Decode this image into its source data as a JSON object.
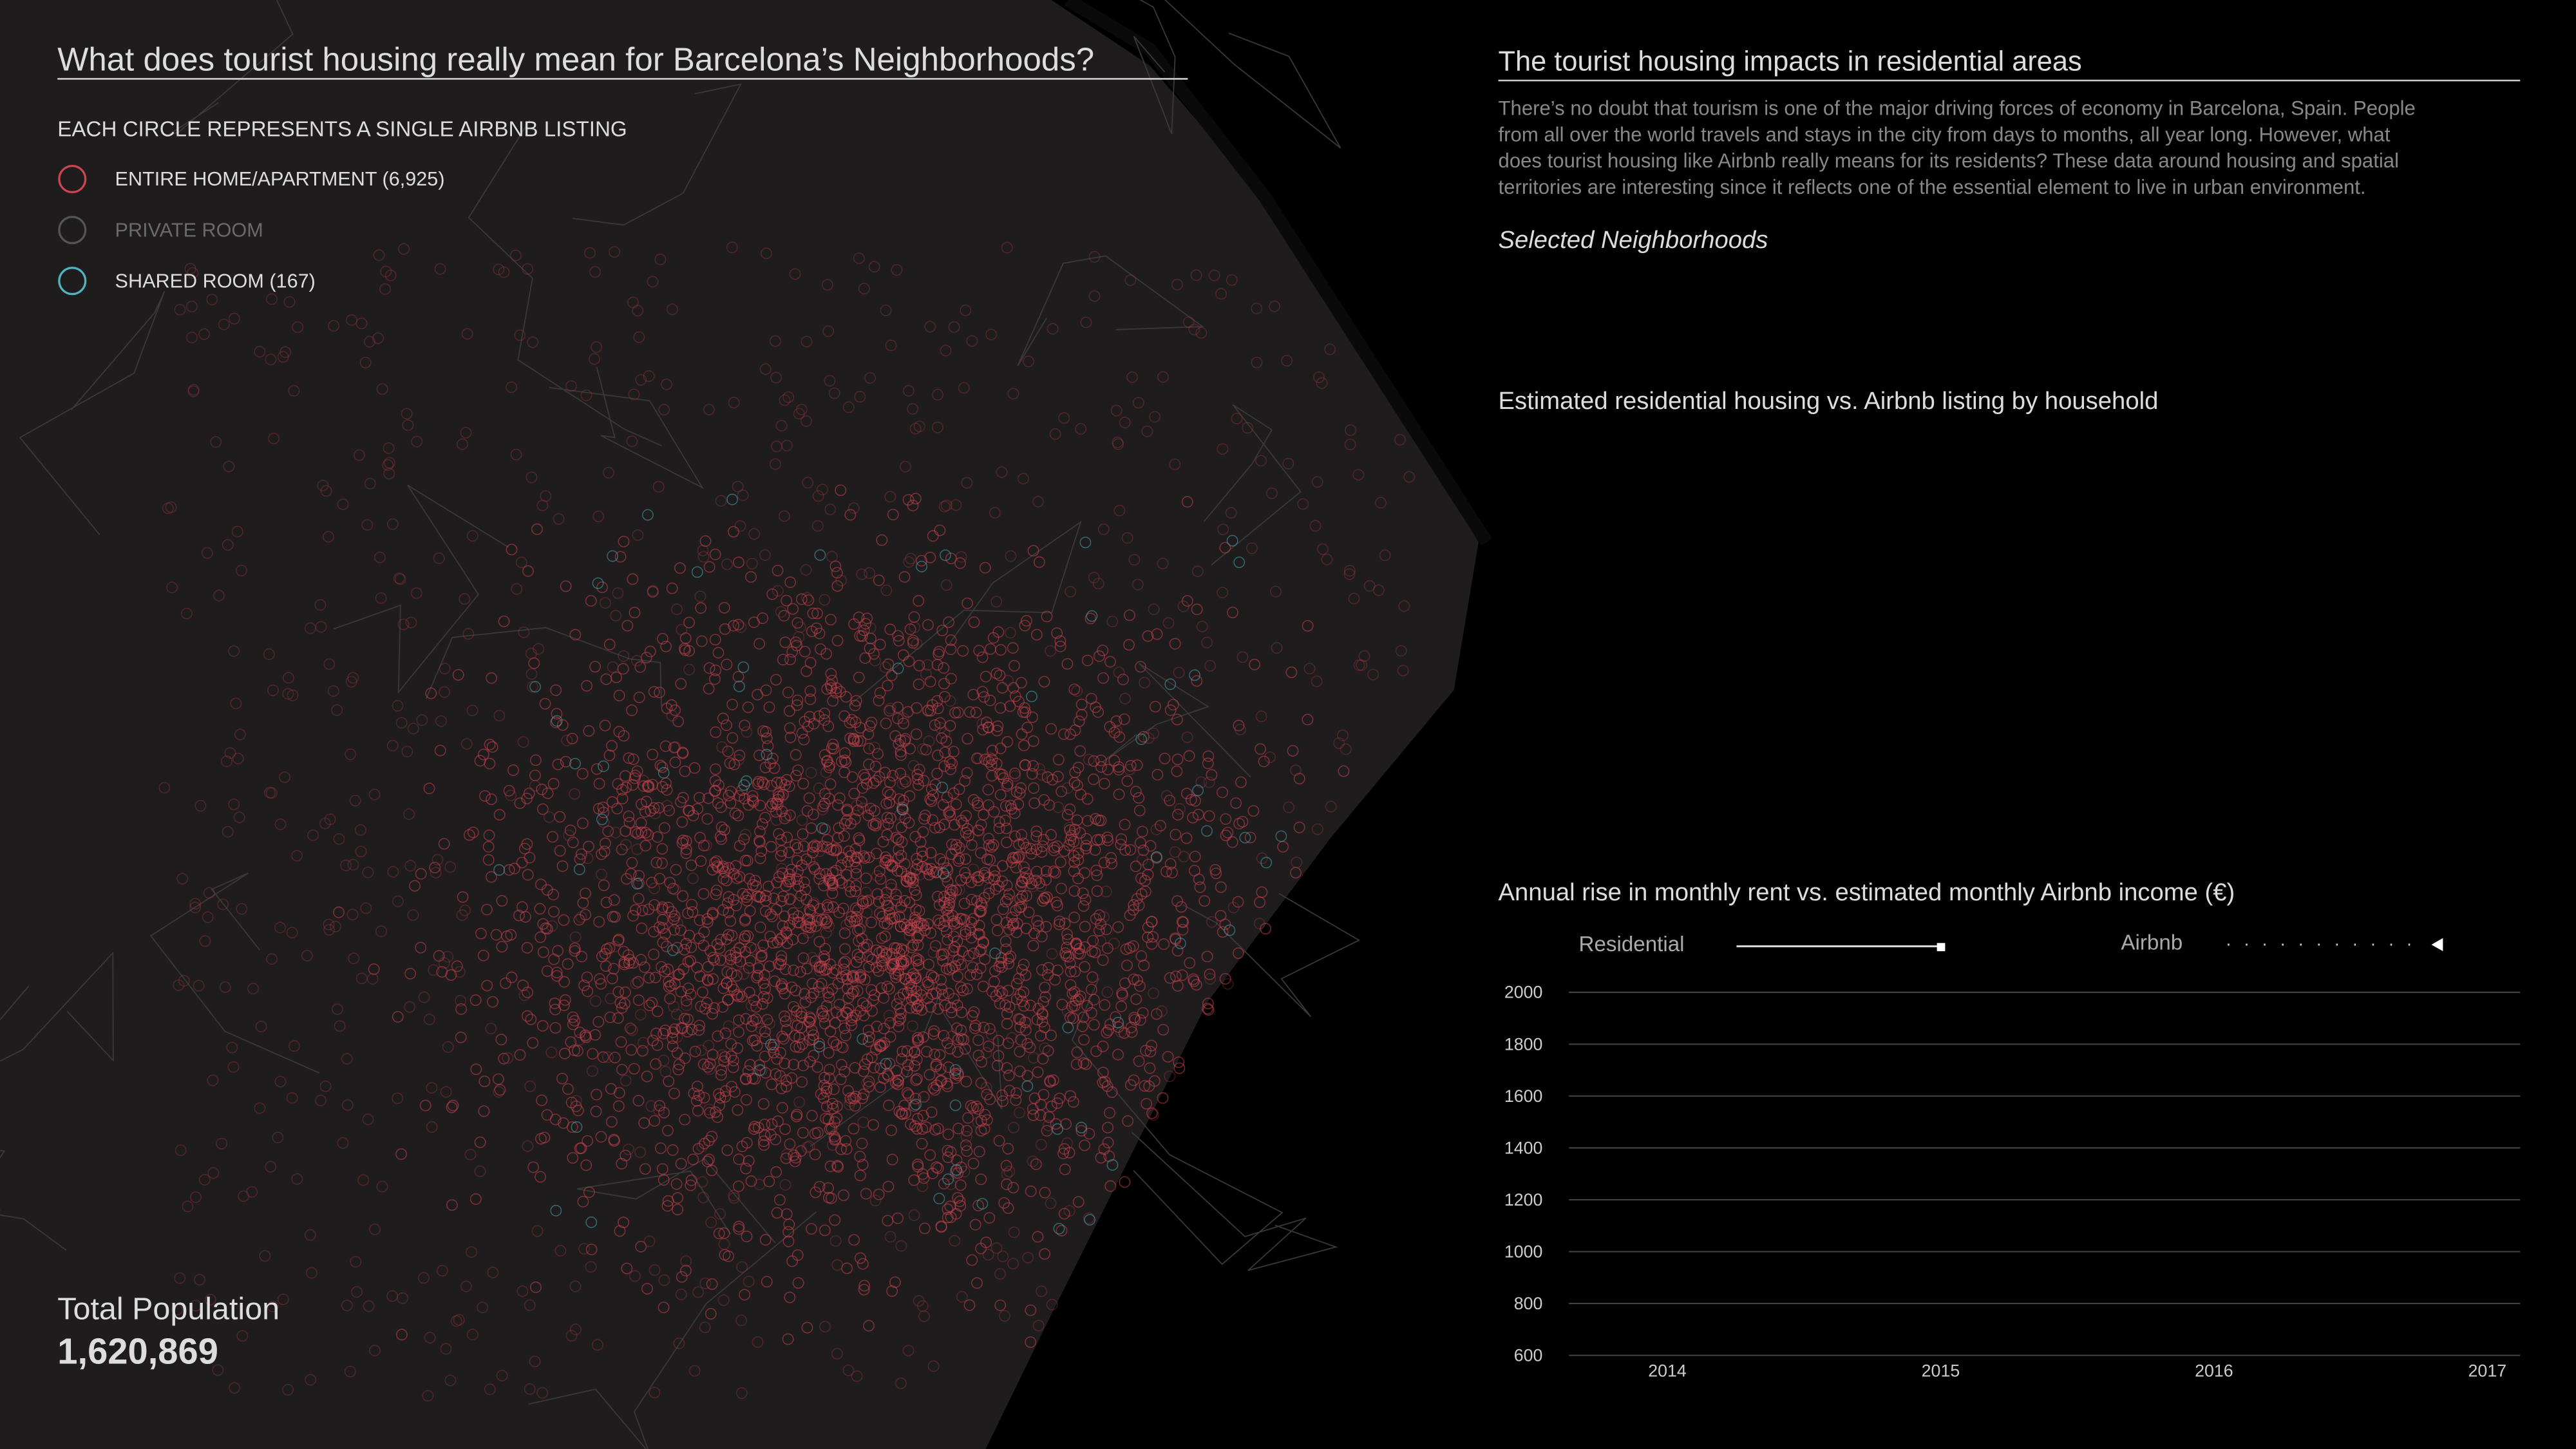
{
  "header": {
    "title": "What does tourist housing really mean for Barcelona’s Neighborhoods?",
    "subtitle": "EACH CIRCLE REPRESENTS A SINGLE AIRBNB LISTING"
  },
  "legend": [
    "ENTIRE HOME/APARTMENT (6,925)",
    "PRIVATE ROOM",
    "SHARED ROOM (167)"
  ],
  "population": {
    "label": "Total Population",
    "value": "1,620,869"
  },
  "sidebar": {
    "title": "The tourist housing impacts in residential areas",
    "paragraph": [
      "There’s no doubt that tourism is one of the major driving forces of economy in Barcelona, Spain. People",
      "from all over the world travels and stays in the city from days to months, all year long. However, what",
      "does tourist housing like Airbnb really means for its residents? These data around housing and spatial",
      "territories are interesting since it reflects one of the essential element to live in urban environment."
    ],
    "selected": "Selected Neighborhoods",
    "household_title": "Estimated residential housing vs. Airbnb listing by household"
  },
  "chart_data": {
    "type": "line",
    "title": "Annual rise in monthly rent vs. estimated monthly Airbnb income (€)",
    "legend": [
      "Residential",
      "Airbnb"
    ],
    "xlim": [
      2013.64,
      2017.12
    ],
    "xticks": [
      2014,
      2015,
      2016,
      2017
    ],
    "ylim": [
      600,
      2000
    ],
    "yticks": [
      600,
      800,
      1000,
      1200,
      1400,
      1600,
      1800,
      2000
    ],
    "grid": true
  }
}
